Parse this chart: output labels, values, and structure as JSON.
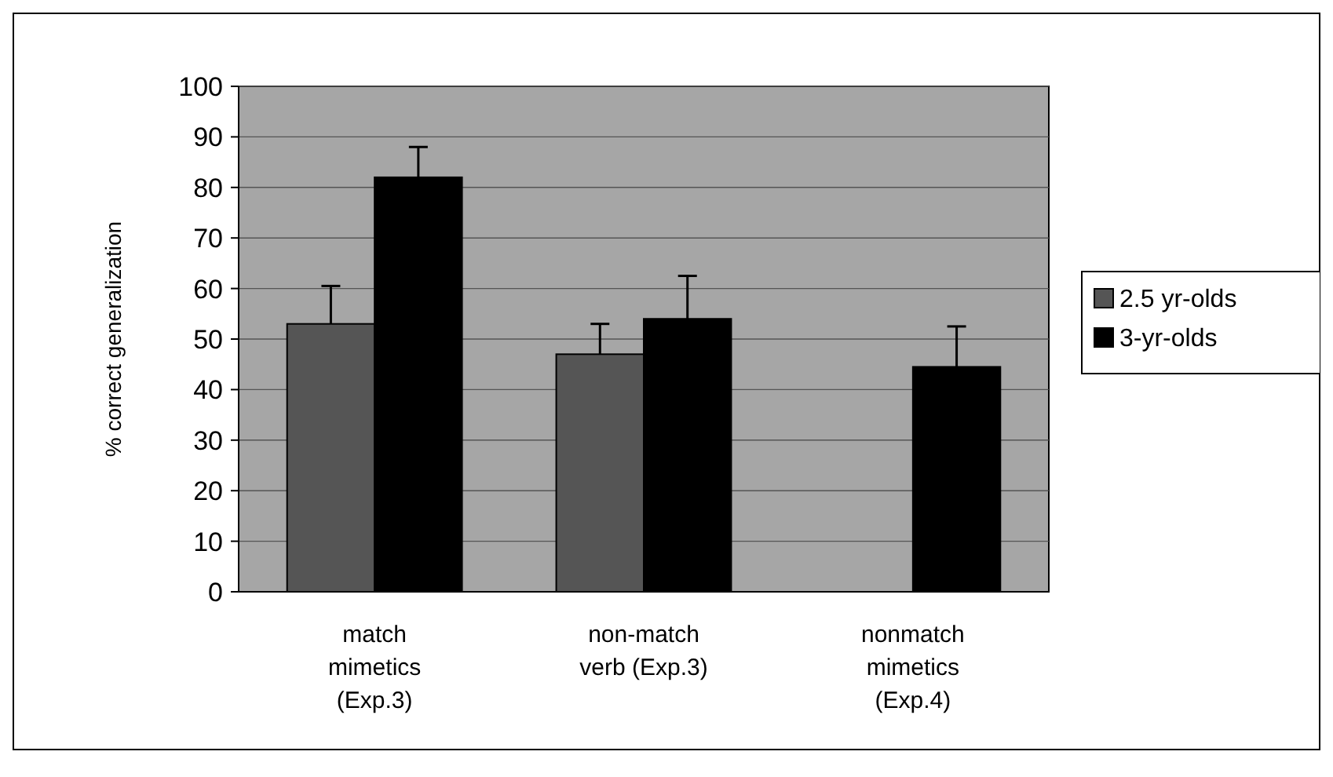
{
  "chart_data": {
    "type": "bar",
    "ylabel": "% correct generalization",
    "categories": [
      "match\nmimetics\n(Exp.3)",
      "non-match\nverb (Exp.3)",
      "nonmatch\nmimetics\n(Exp.4)"
    ],
    "series": [
      {
        "name": "2.5 yr-olds",
        "color": "#555555",
        "values": [
          53,
          47,
          null
        ],
        "errors": [
          [
            53,
            60.5
          ],
          [
            47,
            53
          ],
          null
        ]
      },
      {
        "name": "3-yr-olds",
        "color": "#000000",
        "values": [
          82,
          54,
          44.5
        ],
        "errors": [
          [
            82,
            88
          ],
          [
            54,
            62.5
          ],
          [
            44.5,
            52.5
          ]
        ]
      }
    ],
    "ylim": [
      0,
      100
    ],
    "yticks": [
      0,
      10,
      20,
      30,
      40,
      50,
      60,
      70,
      80,
      90,
      100
    ],
    "grid": "y",
    "legend": "right"
  }
}
